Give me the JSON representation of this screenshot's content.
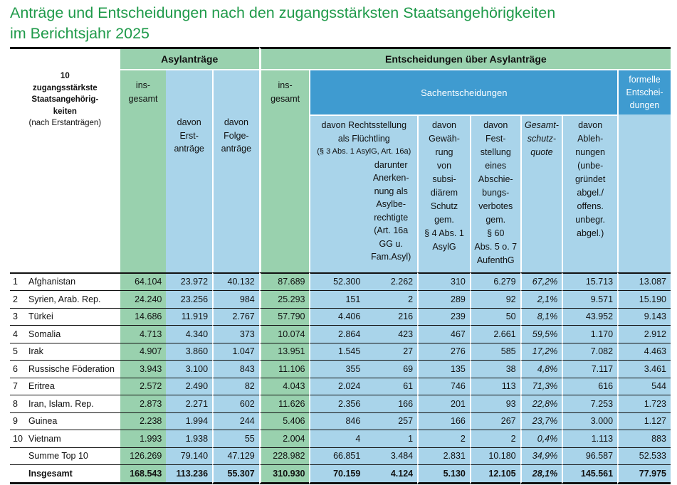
{
  "title": {
    "line1": "Anträge und Entscheidungen nach den zugangsstärksten Staatsangehörigkeiten",
    "line2": "im Berichtsjahr 2025"
  },
  "headers": {
    "rank_lines": [
      "10",
      "zugangsstärkste",
      "Staatsangehörig-",
      "keiten",
      "(nach Erstanträgen)"
    ],
    "asylum_group": "Asylanträge",
    "asylum_total": [
      "ins-",
      "gesamt"
    ],
    "asylum_first": [
      "davon",
      "Erst-",
      "anträge"
    ],
    "asylum_follow": [
      "davon",
      "Folge-",
      "anträge"
    ],
    "decisions_group": "Entscheidungen über Asylanträge",
    "decisions_total": [
      "ins-",
      "gesamt"
    ],
    "substantive": "Sachentscheidungen",
    "formal": [
      "formelle",
      "Entschei-",
      "dungen"
    ],
    "refugee": [
      "davon Rechtsstellung",
      "als Flüchtling"
    ],
    "refugee_law": "(§ 3 Abs. 1 AsylG, Art. 16a)",
    "art16a": [
      "darunter",
      "Anerken-",
      "nung als",
      "Asylbe-",
      "rechtigte",
      "(Art. 16a",
      "GG u.",
      "Fam.Asyl)"
    ],
    "subsidiary": [
      "davon",
      "Gewäh-",
      "rung",
      "von",
      "subsi-",
      "diärem",
      "Schutz",
      "gem.",
      "§ 4 Abs. 1",
      "AsylG"
    ],
    "deportation": [
      "davon",
      "Fest-",
      "stellung",
      "eines",
      "Abschie-",
      "bungs-",
      "verbotes",
      "gem.",
      "§ 60",
      "Abs. 5 o. 7",
      "AufenthG"
    ],
    "protection_rate": [
      "Gesamt-",
      "schutz-",
      "quote"
    ],
    "rejections": [
      "davon",
      "Ableh-",
      "nungen",
      "(unbe-",
      "gründet",
      "abgel./",
      "offens.",
      "unbegr.",
      "abgel.)"
    ]
  },
  "rows": [
    {
      "rank": "1",
      "country": "Afghanistan",
      "v": [
        "64.104",
        "23.972",
        "40.132",
        "87.689",
        "52.300",
        "2.262",
        "310",
        "6.279",
        "67,2%",
        "15.713",
        "13.087"
      ]
    },
    {
      "rank": "2",
      "country": "Syrien, Arab. Rep.",
      "v": [
        "24.240",
        "23.256",
        "984",
        "25.293",
        "151",
        "2",
        "289",
        "92",
        "2,1%",
        "9.571",
        "15.190"
      ]
    },
    {
      "rank": "3",
      "country": "Türkei",
      "v": [
        "14.686",
        "11.919",
        "2.767",
        "57.790",
        "4.406",
        "216",
        "239",
        "50",
        "8,1%",
        "43.952",
        "9.143"
      ]
    },
    {
      "rank": "4",
      "country": "Somalia",
      "v": [
        "4.713",
        "4.340",
        "373",
        "10.074",
        "2.864",
        "423",
        "467",
        "2.661",
        "59,5%",
        "1.170",
        "2.912"
      ]
    },
    {
      "rank": "5",
      "country": "Irak",
      "v": [
        "4.907",
        "3.860",
        "1.047",
        "13.951",
        "1.545",
        "27",
        "276",
        "585",
        "17,2%",
        "7.082",
        "4.463"
      ]
    },
    {
      "rank": "6",
      "country": "Russische Föderation",
      "v": [
        "3.943",
        "3.100",
        "843",
        "11.106",
        "355",
        "69",
        "135",
        "38",
        "4,8%",
        "7.117",
        "3.461"
      ]
    },
    {
      "rank": "7",
      "country": "Eritrea",
      "v": [
        "2.572",
        "2.490",
        "82",
        "4.043",
        "2.024",
        "61",
        "746",
        "113",
        "71,3%",
        "616",
        "544"
      ]
    },
    {
      "rank": "8",
      "country": "Iran, Islam. Rep.",
      "v": [
        "2.873",
        "2.271",
        "602",
        "11.626",
        "2.356",
        "166",
        "201",
        "93",
        "22,8%",
        "7.253",
        "1.723"
      ]
    },
    {
      "rank": "9",
      "country": "Guinea",
      "v": [
        "2.238",
        "1.994",
        "244",
        "5.406",
        "846",
        "257",
        "166",
        "267",
        "23,7%",
        "3.000",
        "1.127"
      ]
    },
    {
      "rank": "10",
      "country": "Vietnam",
      "v": [
        "1.993",
        "1.938",
        "55",
        "2.004",
        "4",
        "1",
        "2",
        "2",
        "0,4%",
        "1.113",
        "883"
      ]
    }
  ],
  "summe": {
    "label": "Summe Top 10",
    "v": [
      "126.269",
      "79.140",
      "47.129",
      "228.982",
      "66.851",
      "3.484",
      "2.831",
      "10.180",
      "34,9%",
      "96.587",
      "52.533"
    ]
  },
  "insgesamt": {
    "label": "Insgesamt",
    "v": [
      "168.543",
      "113.236",
      "55.307",
      "310.930",
      "70.159",
      "4.124",
      "5.130",
      "12.105",
      "28,1%",
      "145.561",
      "77.975"
    ]
  },
  "colors": {
    "title": "#1f9a4a",
    "green": "#99d1ae",
    "light_blue": "#a9d4ea",
    "dark_blue": "#3f9bd0"
  }
}
